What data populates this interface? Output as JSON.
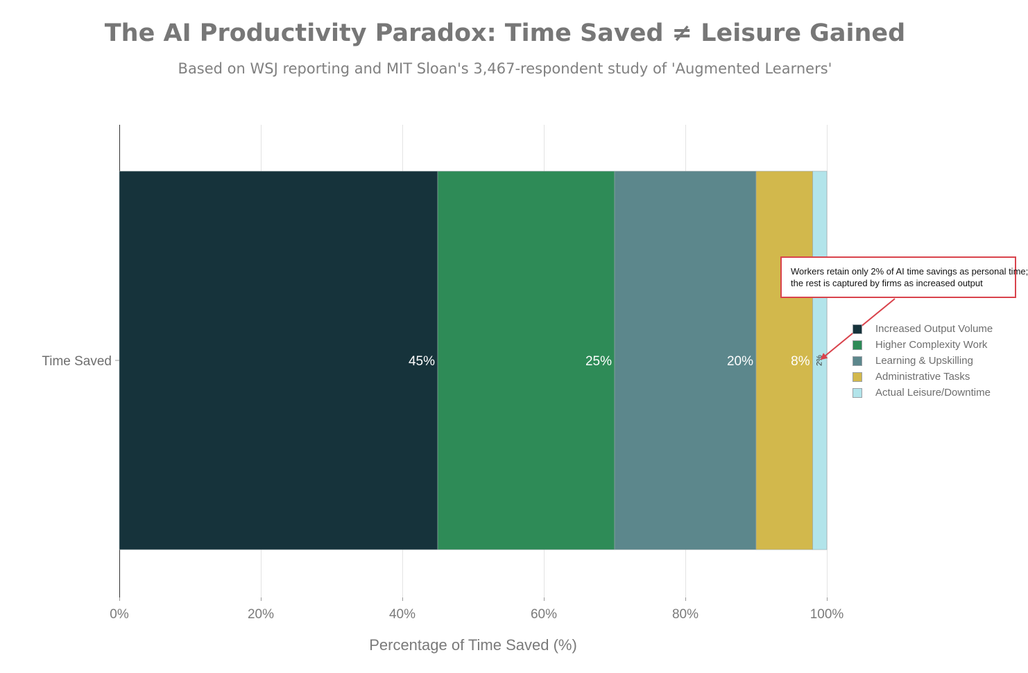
{
  "title": "The AI Productivity Paradox: Time Saved ≠ Leisure Gained",
  "subtitle": "Based on WSJ reporting and MIT Sloan's 3,467-respondent study of 'Augmented Learners'",
  "annotation": {
    "line1": "Workers retain only 2% of AI time savings as personal time;",
    "line2": "the rest is captured by firms as increased output"
  },
  "chart_data": {
    "type": "bar",
    "orientation": "horizontal",
    "stacked": true,
    "categories": [
      "Time Saved"
    ],
    "series": [
      {
        "name": "Increased Output Volume",
        "values": [
          45
        ],
        "label": "45%",
        "color": "#16333b"
      },
      {
        "name": "Higher Complexity Work",
        "values": [
          25
        ],
        "label": "25%",
        "color": "#2e8b57"
      },
      {
        "name": "Learning & Upskilling",
        "values": [
          20
        ],
        "label": "20%",
        "color": "#5c878c"
      },
      {
        "name": "Administrative Tasks",
        "values": [
          8
        ],
        "label": "8%",
        "color": "#d2b84c"
      },
      {
        "name": "Actual Leisure/Downtime",
        "values": [
          2
        ],
        "label": "2%",
        "color": "#b2e4ea"
      }
    ],
    "xlabel": "Percentage of Time Saved (%)",
    "ylabel": "",
    "xlim": [
      0,
      100
    ],
    "xticks": [
      "0%",
      "20%",
      "40%",
      "60%",
      "80%",
      "100%"
    ],
    "grid": "vertical",
    "legend_position": "right"
  }
}
